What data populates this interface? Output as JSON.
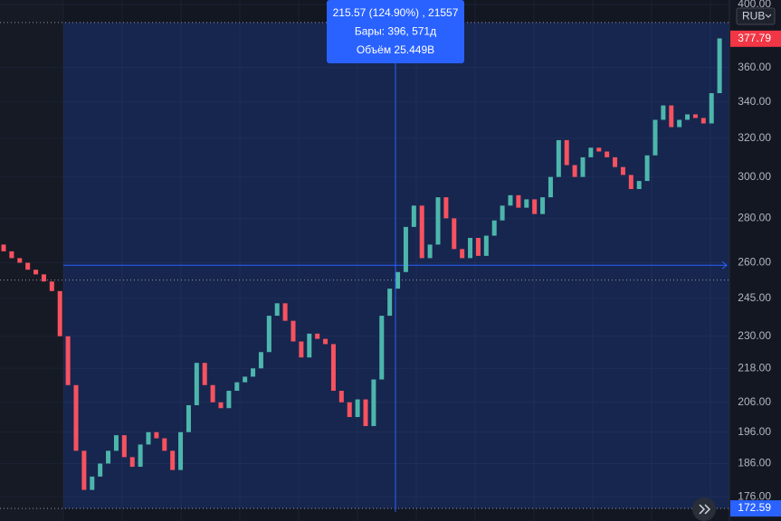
{
  "chart_data": {
    "type": "candlestick",
    "currency": "RUB",
    "open": [
      268,
      265,
      262,
      260,
      257,
      255,
      252,
      248,
      230,
      212,
      190,
      178,
      182,
      186,
      190,
      195,
      188,
      185,
      192,
      196,
      194,
      190,
      184,
      196,
      205,
      220,
      212,
      206,
      204,
      210,
      213,
      215,
      218,
      224,
      238,
      243,
      236,
      228,
      222,
      231,
      229,
      227,
      210,
      206,
      201,
      207,
      198,
      214,
      238,
      249,
      256,
      276,
      286,
      262,
      268,
      290,
      280,
      266,
      262,
      271,
      263,
      272,
      279,
      286,
      291,
      285,
      289,
      282,
      290,
      300,
      319,
      306,
      300,
      310,
      315,
      313,
      310,
      305,
      301,
      294,
      298,
      311,
      330,
      338,
      326,
      330,
      333,
      331,
      328,
      345
    ],
    "close": [
      265,
      262,
      260,
      257,
      255,
      252,
      248,
      230,
      212,
      190,
      178,
      182,
      186,
      190,
      195,
      188,
      185,
      192,
      196,
      194,
      190,
      184,
      196,
      205,
      220,
      212,
      206,
      204,
      210,
      213,
      215,
      218,
      224,
      238,
      243,
      236,
      228,
      222,
      231,
      229,
      227,
      210,
      206,
      201,
      207,
      198,
      214,
      238,
      249,
      256,
      276,
      286,
      262,
      268,
      290,
      280,
      266,
      262,
      271,
      263,
      272,
      279,
      286,
      291,
      285,
      289,
      282,
      290,
      300,
      319,
      306,
      300,
      310,
      315,
      313,
      310,
      305,
      301,
      294,
      298,
      311,
      330,
      338,
      326,
      330,
      333,
      331,
      328,
      345,
      378
    ],
    "up_color": "#4db6ac",
    "down_color": "#f7525f",
    "log_scale": true,
    "ylim": [
      169,
      403
    ],
    "yticks": [
      {
        "value": 176,
        "label": "176.00"
      },
      {
        "value": 186,
        "label": "186.00"
      },
      {
        "value": 196,
        "label": "196.00"
      },
      {
        "value": 206,
        "label": "206.00"
      },
      {
        "value": 218,
        "label": "218.00"
      },
      {
        "value": 230,
        "label": "230.00"
      },
      {
        "value": 245,
        "label": "245.00"
      },
      {
        "value": 260,
        "label": "260.00"
      },
      {
        "value": 280,
        "label": "280.00"
      },
      {
        "value": 300,
        "label": "300.00"
      },
      {
        "value": 320,
        "label": "320.00"
      },
      {
        "value": 340,
        "label": "340.00"
      },
      {
        "value": 360,
        "label": "360.00"
      },
      {
        "value": 400,
        "label": "400.00"
      }
    ],
    "grid": true,
    "price_labels": [
      {
        "value": 377.79,
        "label": "377.79",
        "color": "#f23645"
      },
      {
        "value": 172.59,
        "label": "172.59",
        "color": "#2962ff"
      }
    ],
    "measure": {
      "from": 172.59,
      "to": 388.16,
      "lines": [
        "215.57 (124.90%) , 21557",
        "Бары: 396, 571д",
        "Объём 25.449B"
      ]
    },
    "horizontal_line": 258.9,
    "dotted_line": 252.6
  }
}
